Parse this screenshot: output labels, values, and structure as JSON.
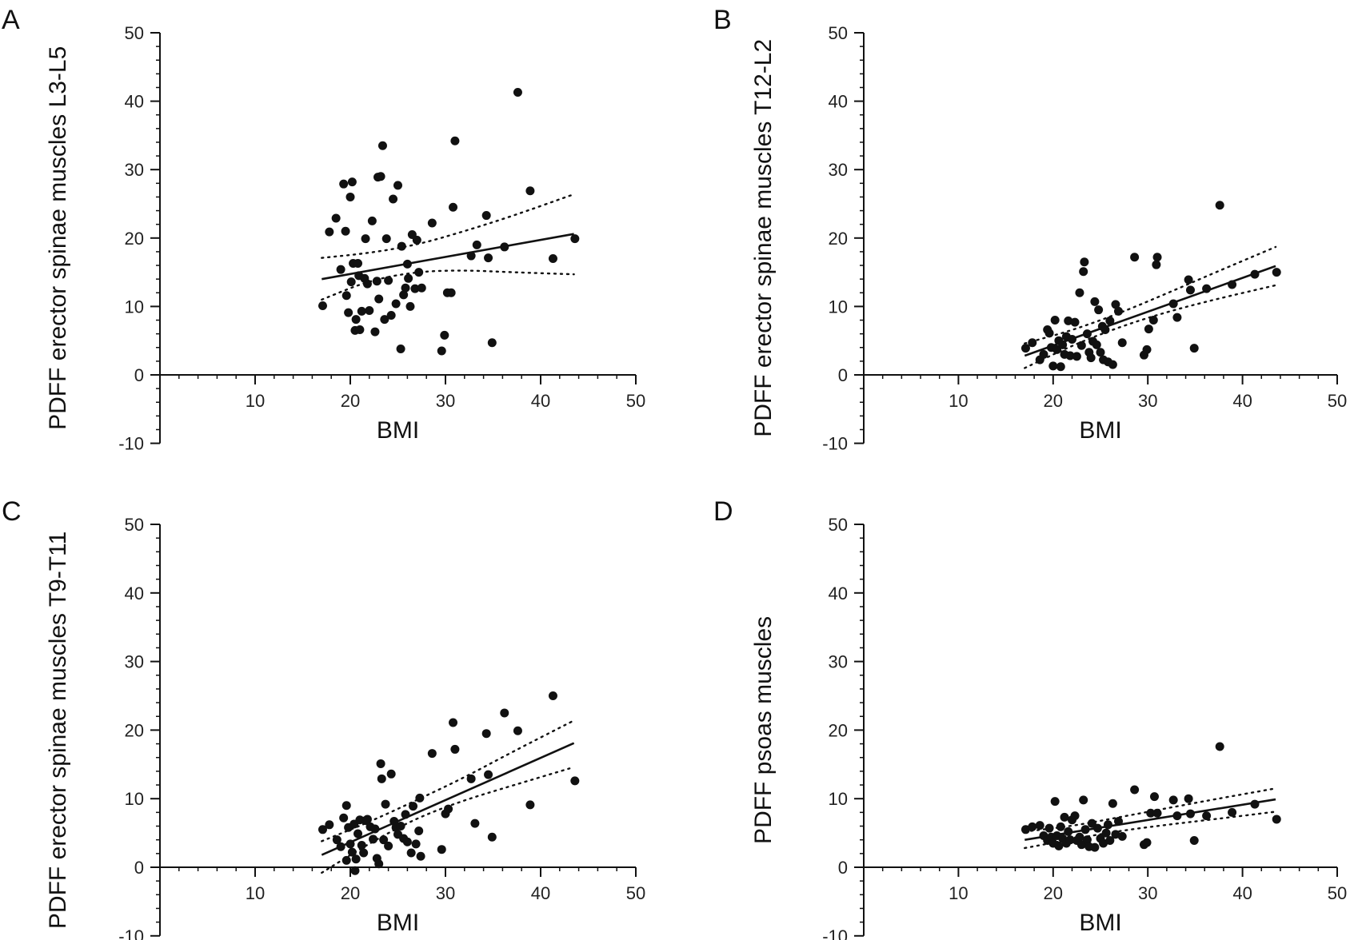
{
  "chart_data": [
    {
      "panel": "A",
      "type": "scatter",
      "xlabel": "BMI",
      "ylabel": "PDFF erector spinae muscles L3-L5",
      "xlim": [
        0,
        50
      ],
      "ylim": [
        -10,
        50
      ],
      "xticks": [
        10,
        20,
        30,
        40,
        50
      ],
      "yticks": [
        -10,
        0,
        10,
        20,
        30,
        40,
        50
      ],
      "points": [
        [
          17.1,
          10.1
        ],
        [
          17.8,
          20.9
        ],
        [
          18.5,
          22.9
        ],
        [
          19.0,
          15.4
        ],
        [
          19.3,
          27.9
        ],
        [
          19.5,
          21.0
        ],
        [
          19.6,
          11.6
        ],
        [
          19.8,
          9.1
        ],
        [
          20.0,
          26.0
        ],
        [
          20.1,
          13.6
        ],
        [
          20.2,
          28.2
        ],
        [
          20.3,
          16.3
        ],
        [
          20.5,
          6.5
        ],
        [
          20.6,
          8.1
        ],
        [
          20.8,
          16.3
        ],
        [
          20.9,
          14.5
        ],
        [
          21.0,
          6.6
        ],
        [
          21.2,
          9.3
        ],
        [
          21.5,
          14.1
        ],
        [
          21.6,
          19.9
        ],
        [
          21.8,
          13.3
        ],
        [
          22.0,
          9.4
        ],
        [
          22.3,
          22.5
        ],
        [
          22.6,
          6.3
        ],
        [
          22.8,
          13.7
        ],
        [
          22.9,
          28.9
        ],
        [
          23.0,
          11.1
        ],
        [
          23.2,
          29.0
        ],
        [
          23.4,
          33.5
        ],
        [
          23.6,
          8.1
        ],
        [
          23.8,
          19.9
        ],
        [
          24.0,
          13.8
        ],
        [
          24.3,
          8.7
        ],
        [
          24.5,
          25.7
        ],
        [
          24.8,
          10.4
        ],
        [
          25.0,
          27.7
        ],
        [
          25.3,
          3.8
        ],
        [
          25.4,
          18.8
        ],
        [
          25.6,
          11.7
        ],
        [
          25.8,
          12.7
        ],
        [
          26.0,
          16.2
        ],
        [
          26.1,
          14.1
        ],
        [
          26.3,
          10.0
        ],
        [
          26.5,
          20.5
        ],
        [
          26.8,
          12.6
        ],
        [
          27.0,
          19.7
        ],
        [
          27.2,
          15.0
        ],
        [
          27.5,
          12.7
        ],
        [
          28.6,
          22.2
        ],
        [
          29.6,
          3.5
        ],
        [
          29.9,
          5.8
        ],
        [
          30.2,
          12.0
        ],
        [
          30.6,
          12.0
        ],
        [
          30.8,
          24.5
        ],
        [
          31.0,
          34.2
        ],
        [
          32.7,
          17.4
        ],
        [
          33.3,
          19.0
        ],
        [
          34.3,
          23.3
        ],
        [
          34.5,
          17.1
        ],
        [
          34.9,
          4.7
        ],
        [
          36.2,
          18.7
        ],
        [
          37.6,
          41.3
        ],
        [
          38.9,
          26.9
        ],
        [
          41.3,
          17.0
        ],
        [
          43.6,
          19.9
        ]
      ],
      "fit": {
        "x": [
          17,
          43.5
        ],
        "y": [
          14.0,
          20.6
        ]
      },
      "ci_upper": [
        [
          17,
          17.1
        ],
        [
          22,
          17.8
        ],
        [
          27,
          19.0
        ],
        [
          32,
          21.0
        ],
        [
          37,
          23.2
        ],
        [
          43.5,
          26.4
        ]
      ],
      "ci_lower": [
        [
          17,
          11.0
        ],
        [
          22,
          13.8
        ],
        [
          27,
          15.1
        ],
        [
          32,
          15.3
        ],
        [
          37,
          15.0
        ],
        [
          43.5,
          14.7
        ]
      ]
    },
    {
      "panel": "B",
      "type": "scatter",
      "xlabel": "BMI",
      "ylabel": "PDFF erector spinae muscles T12-L2",
      "xlim": [
        0,
        50
      ],
      "ylim": [
        -10,
        50
      ],
      "xticks": [
        10,
        20,
        30,
        40,
        50
      ],
      "yticks": [
        -10,
        0,
        10,
        20,
        30,
        40,
        50
      ],
      "points": [
        [
          17.1,
          3.9
        ],
        [
          17.8,
          4.7
        ],
        [
          18.6,
          2.2
        ],
        [
          19.0,
          3.0
        ],
        [
          19.4,
          6.6
        ],
        [
          19.6,
          6.1
        ],
        [
          19.8,
          4.0
        ],
        [
          20.0,
          1.3
        ],
        [
          20.2,
          8.0
        ],
        [
          20.4,
          3.7
        ],
        [
          20.6,
          5.0
        ],
        [
          20.8,
          1.2
        ],
        [
          21.0,
          4.4
        ],
        [
          21.2,
          3.0
        ],
        [
          21.4,
          5.6
        ],
        [
          21.6,
          7.9
        ],
        [
          21.8,
          2.8
        ],
        [
          22.0,
          5.2
        ],
        [
          22.3,
          7.7
        ],
        [
          22.5,
          2.7
        ],
        [
          22.8,
          12.0
        ],
        [
          23.0,
          4.3
        ],
        [
          23.2,
          15.1
        ],
        [
          23.3,
          16.5
        ],
        [
          23.6,
          6.0
        ],
        [
          23.8,
          3.3
        ],
        [
          24.0,
          2.5
        ],
        [
          24.2,
          4.9
        ],
        [
          24.4,
          10.7
        ],
        [
          24.6,
          4.4
        ],
        [
          24.8,
          9.5
        ],
        [
          25.0,
          3.3
        ],
        [
          25.2,
          7.1
        ],
        [
          25.3,
          2.2
        ],
        [
          25.5,
          6.6
        ],
        [
          25.8,
          1.9
        ],
        [
          26.0,
          7.9
        ],
        [
          26.3,
          1.5
        ],
        [
          26.6,
          10.3
        ],
        [
          26.9,
          9.3
        ],
        [
          27.3,
          4.7
        ],
        [
          28.6,
          17.2
        ],
        [
          29.6,
          2.9
        ],
        [
          29.9,
          3.7
        ],
        [
          30.1,
          6.7
        ],
        [
          30.6,
          8.0
        ],
        [
          30.9,
          16.1
        ],
        [
          31.0,
          17.2
        ],
        [
          32.7,
          10.4
        ],
        [
          33.1,
          8.4
        ],
        [
          34.3,
          13.9
        ],
        [
          34.5,
          12.4
        ],
        [
          34.9,
          3.9
        ],
        [
          36.2,
          12.6
        ],
        [
          37.6,
          24.8
        ],
        [
          38.9,
          13.2
        ],
        [
          41.3,
          14.7
        ],
        [
          43.6,
          15.0
        ]
      ],
      "fit": {
        "x": [
          17,
          43.5
        ],
        "y": [
          2.8,
          15.9
        ]
      },
      "ci_upper": [
        [
          17,
          4.6
        ],
        [
          22,
          6.5
        ],
        [
          27,
          9.0
        ],
        [
          32,
          11.9
        ],
        [
          37,
          14.9
        ],
        [
          43.5,
          18.7
        ]
      ],
      "ci_lower": [
        [
          17,
          1.0
        ],
        [
          22,
          4.3
        ],
        [
          27,
          7.0
        ],
        [
          32,
          9.2
        ],
        [
          37,
          11.0
        ],
        [
          43.5,
          13.1
        ]
      ]
    },
    {
      "panel": "C",
      "type": "scatter",
      "xlabel": "BMI",
      "ylabel": "PDFF erector spinae muscles T9-T11",
      "xlim": [
        0,
        50
      ],
      "ylim": [
        -10,
        50
      ],
      "xticks": [
        10,
        20,
        30,
        40,
        50
      ],
      "yticks": [
        -10,
        0,
        10,
        20,
        30,
        40,
        50
      ],
      "points": [
        [
          17.1,
          5.5
        ],
        [
          17.8,
          6.2
        ],
        [
          18.6,
          4.0
        ],
        [
          19.0,
          3.0
        ],
        [
          19.3,
          7.2
        ],
        [
          19.6,
          9.0
        ],
        [
          19.6,
          1.0
        ],
        [
          19.8,
          5.8
        ],
        [
          20.0,
          3.4
        ],
        [
          20.2,
          2.2
        ],
        [
          20.4,
          6.3
        ],
        [
          20.5,
          -0.5
        ],
        [
          20.6,
          1.2
        ],
        [
          20.8,
          4.9
        ],
        [
          21.0,
          6.9
        ],
        [
          21.2,
          3.2
        ],
        [
          21.4,
          2.1
        ],
        [
          21.6,
          6.8
        ],
        [
          21.8,
          7.0
        ],
        [
          22.1,
          5.9
        ],
        [
          22.4,
          4.1
        ],
        [
          22.6,
          5.6
        ],
        [
          22.8,
          1.3
        ],
        [
          23.0,
          0.5
        ],
        [
          23.2,
          15.1
        ],
        [
          23.3,
          12.9
        ],
        [
          23.5,
          4.0
        ],
        [
          23.7,
          9.2
        ],
        [
          24.0,
          3.1
        ],
        [
          24.3,
          13.6
        ],
        [
          24.6,
          6.7
        ],
        [
          24.8,
          5.8
        ],
        [
          25.0,
          4.8
        ],
        [
          25.3,
          6.0
        ],
        [
          25.6,
          4.2
        ],
        [
          25.8,
          7.7
        ],
        [
          26.0,
          3.7
        ],
        [
          26.4,
          2.1
        ],
        [
          26.6,
          8.9
        ],
        [
          26.9,
          3.4
        ],
        [
          27.2,
          5.3
        ],
        [
          27.3,
          10.1
        ],
        [
          27.4,
          1.6
        ],
        [
          28.6,
          16.6
        ],
        [
          29.6,
          2.6
        ],
        [
          30.0,
          7.8
        ],
        [
          30.3,
          8.5
        ],
        [
          30.8,
          21.1
        ],
        [
          31.0,
          17.2
        ],
        [
          32.7,
          12.9
        ],
        [
          33.1,
          6.4
        ],
        [
          34.3,
          19.5
        ],
        [
          34.5,
          13.5
        ],
        [
          34.9,
          4.4
        ],
        [
          36.2,
          22.5
        ],
        [
          37.6,
          19.9
        ],
        [
          38.9,
          9.1
        ],
        [
          41.3,
          25.0
        ],
        [
          43.6,
          12.6
        ]
      ],
      "fit": {
        "x": [
          17,
          43.5
        ],
        "y": [
          1.8,
          18.1
        ]
      },
      "ci_upper": [
        [
          17,
          3.8
        ],
        [
          22,
          6.6
        ],
        [
          27,
          9.8
        ],
        [
          32,
          13.1
        ],
        [
          37,
          16.8
        ],
        [
          43.5,
          21.4
        ]
      ],
      "ci_lower": [
        [
          17,
          -0.8
        ],
        [
          22,
          3.5
        ],
        [
          27,
          7.2
        ],
        [
          32,
          9.8
        ],
        [
          37,
          11.9
        ],
        [
          43.5,
          14.6
        ]
      ]
    },
    {
      "panel": "D",
      "type": "scatter",
      "xlabel": "BMI",
      "ylabel": "PDFF psoas muscles",
      "xlim": [
        0,
        50
      ],
      "ylim": [
        -10,
        50
      ],
      "xticks": [
        10,
        20,
        30,
        40,
        50
      ],
      "yticks": [
        -10,
        0,
        10,
        20,
        30,
        40,
        50
      ],
      "points": [
        [
          17.1,
          5.5
        ],
        [
          17.8,
          5.9
        ],
        [
          18.6,
          6.1
        ],
        [
          19.0,
          4.6
        ],
        [
          19.4,
          3.9
        ],
        [
          19.6,
          5.7
        ],
        [
          19.8,
          4.4
        ],
        [
          20.0,
          3.5
        ],
        [
          20.2,
          9.6
        ],
        [
          20.4,
          4.6
        ],
        [
          20.6,
          3.1
        ],
        [
          20.8,
          5.9
        ],
        [
          21.0,
          4.2
        ],
        [
          21.2,
          7.3
        ],
        [
          21.4,
          3.5
        ],
        [
          21.6,
          5.2
        ],
        [
          21.8,
          4.0
        ],
        [
          22.0,
          6.9
        ],
        [
          22.3,
          7.5
        ],
        [
          22.5,
          3.9
        ],
        [
          22.8,
          4.4
        ],
        [
          23.0,
          3.3
        ],
        [
          23.2,
          9.8
        ],
        [
          23.4,
          5.5
        ],
        [
          23.6,
          4.0
        ],
        [
          23.8,
          3.0
        ],
        [
          24.1,
          6.4
        ],
        [
          24.4,
          2.9
        ],
        [
          24.7,
          5.7
        ],
        [
          25.0,
          4.2
        ],
        [
          25.3,
          3.5
        ],
        [
          25.6,
          5.0
        ],
        [
          25.8,
          6.2
        ],
        [
          26.0,
          3.9
        ],
        [
          26.3,
          9.3
        ],
        [
          26.6,
          4.8
        ],
        [
          26.9,
          6.7
        ],
        [
          27.3,
          4.5
        ],
        [
          28.6,
          11.3
        ],
        [
          29.6,
          3.3
        ],
        [
          29.9,
          3.6
        ],
        [
          30.3,
          7.9
        ],
        [
          30.7,
          10.3
        ],
        [
          31.0,
          7.9
        ],
        [
          32.7,
          9.8
        ],
        [
          33.1,
          7.5
        ],
        [
          34.3,
          10.0
        ],
        [
          34.5,
          7.8
        ],
        [
          34.9,
          3.9
        ],
        [
          36.2,
          7.5
        ],
        [
          37.6,
          17.6
        ],
        [
          38.9,
          8.0
        ],
        [
          41.3,
          9.2
        ],
        [
          43.6,
          7.0
        ]
      ],
      "fit": {
        "x": [
          17,
          43.5
        ],
        "y": [
          4.0,
          9.9
        ]
      },
      "ci_upper": [
        [
          17,
          5.2
        ],
        [
          22,
          6.0
        ],
        [
          27,
          7.3
        ],
        [
          32,
          8.6
        ],
        [
          37,
          9.9
        ],
        [
          43.5,
          11.5
        ]
      ],
      "ci_lower": [
        [
          17,
          2.8
        ],
        [
          22,
          4.1
        ],
        [
          27,
          5.3
        ],
        [
          32,
          6.2
        ],
        [
          37,
          7.0
        ],
        [
          43.5,
          8.1
        ]
      ]
    }
  ]
}
